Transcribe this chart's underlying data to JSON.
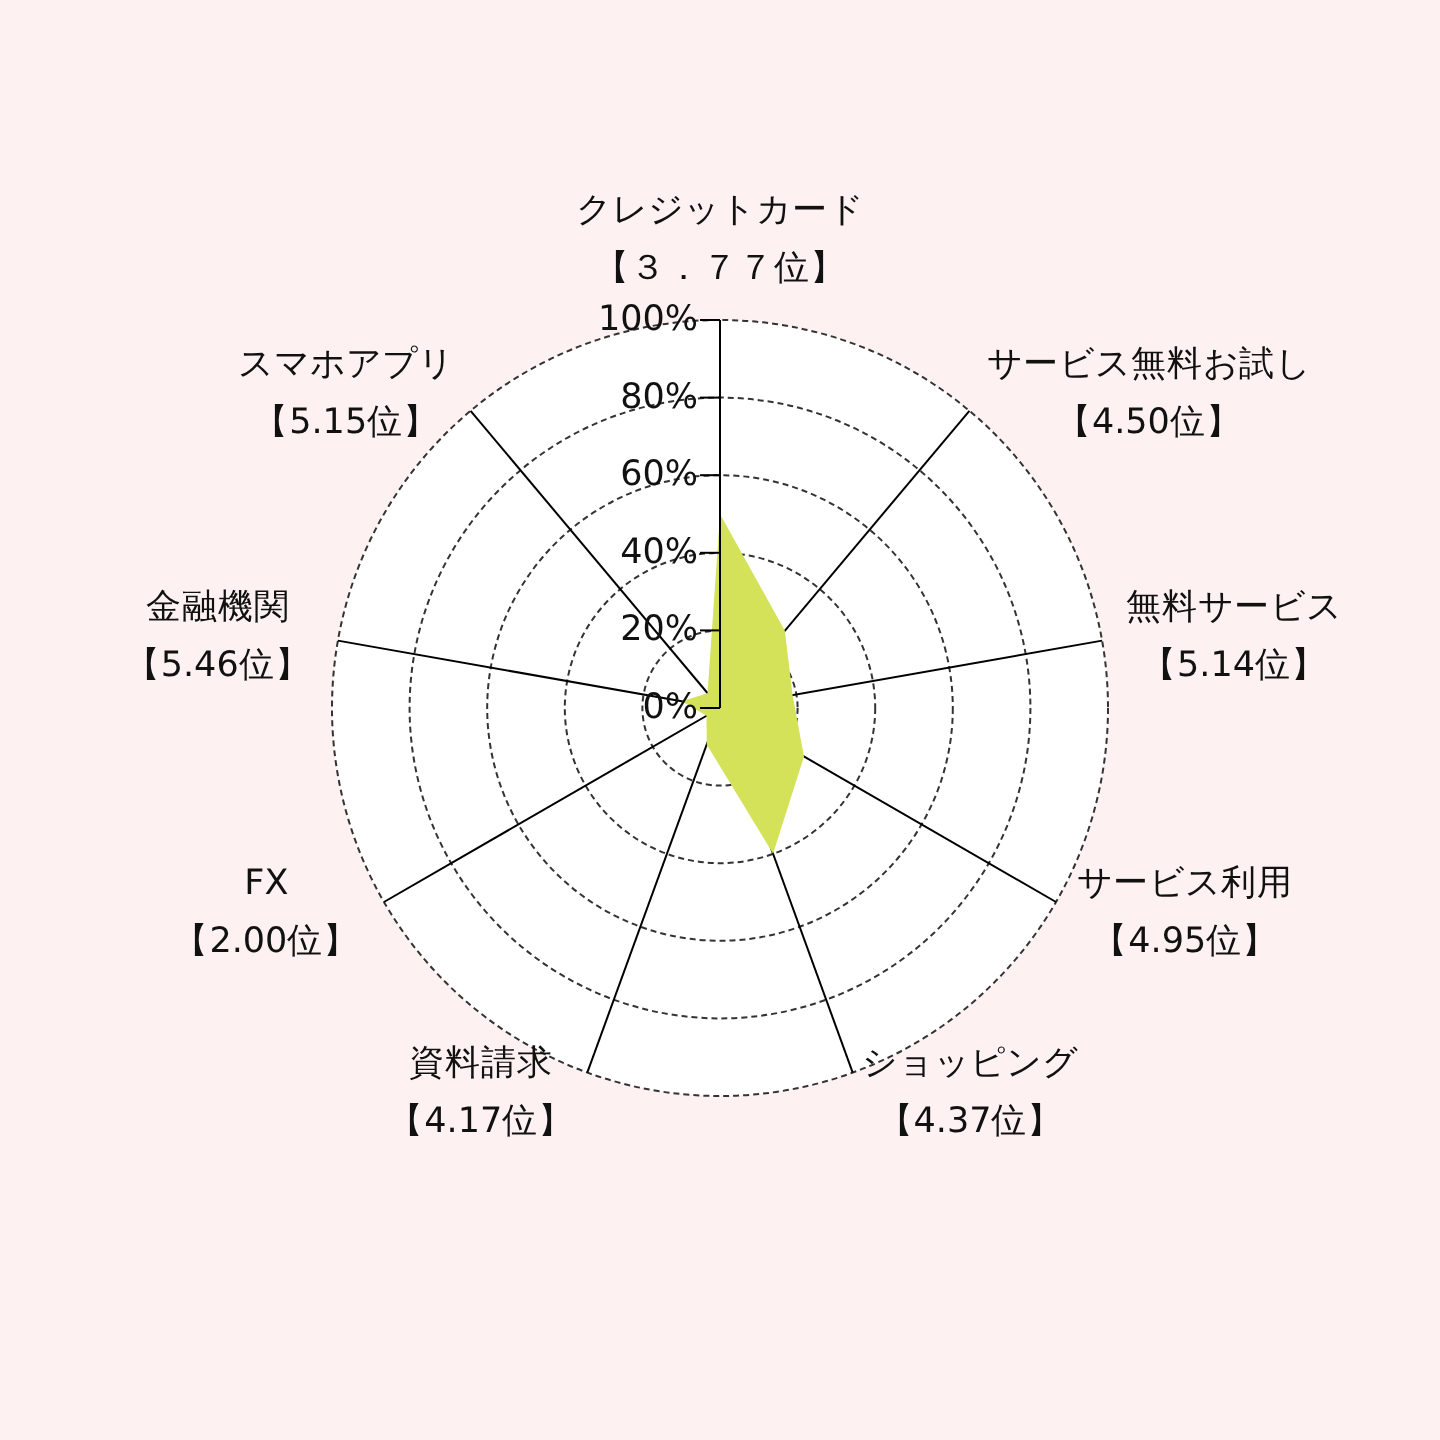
{
  "chart_data": {
    "type": "radar",
    "categories": [
      "クレジットカード【３．７７位】",
      "サービス無料お試し【4.50位】",
      "無料サービス【5.14位】",
      "サービス利用【4.95位】",
      "ショッピング【4.37位】",
      "資料請求【4.17位】",
      "FX\n【2.00位】",
      "金融機関【5.46位】",
      "スマホアプリ【5.15位】"
    ],
    "series": [
      {
        "color": "#d4e25a",
        "values": [
          50,
          26,
          19,
          25,
          40,
          10,
          4,
          10,
          5
        ]
      }
    ],
    "ylim": [
      0,
      100
    ],
    "yticks": [
      {
        "value": 0,
        "label": "0%"
      },
      {
        "value": 20,
        "label": "20%"
      },
      {
        "value": 40,
        "label": "40%"
      },
      {
        "value": 60,
        "label": "60%"
      },
      {
        "value": 80,
        "label": "80%"
      },
      {
        "value": 100,
        "label": "100%"
      }
    ],
    "grid": true
  }
}
